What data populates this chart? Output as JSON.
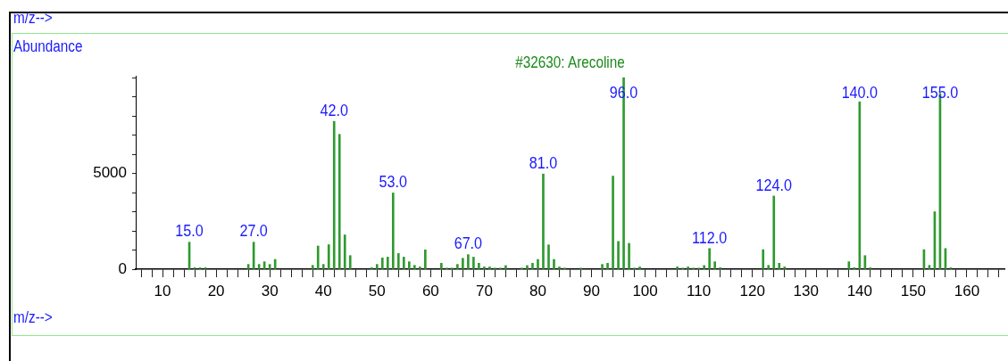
{
  "chart_data": {
    "type": "bar",
    "title": "#32630: Arecoline",
    "xlabel": "m/z-->",
    "ylabel": "Abundance",
    "x": [
      15,
      16,
      17,
      18,
      26,
      27,
      28,
      29,
      30,
      31,
      38,
      39,
      40,
      41,
      42,
      43,
      44,
      45,
      49,
      50,
      51,
      52,
      53,
      54,
      55,
      56,
      57,
      58,
      59,
      62,
      63,
      64,
      65,
      66,
      67,
      68,
      69,
      70,
      71,
      72,
      73,
      74,
      77,
      78,
      79,
      80,
      81,
      82,
      83,
      84,
      85,
      88,
      92,
      93,
      94,
      95,
      96,
      97,
      98,
      99,
      106,
      107,
      108,
      109,
      110,
      111,
      112,
      113,
      114,
      122,
      123,
      124,
      125,
      126,
      138,
      139,
      140,
      141,
      142,
      152,
      153,
      154,
      155,
      156,
      157
    ],
    "values": [
      1410,
      80,
      80,
      80,
      250,
      1410,
      250,
      390,
      250,
      510,
      200,
      1210,
      250,
      1280,
      7720,
      7040,
      1790,
      710,
      80,
      250,
      590,
      630,
      3980,
      820,
      630,
      390,
      200,
      120,
      1010,
      310,
      60,
      60,
      250,
      570,
      760,
      630,
      310,
      120,
      120,
      60,
      60,
      190,
      60,
      190,
      310,
      510,
      4970,
      1270,
      510,
      120,
      60,
      60,
      250,
      310,
      4860,
      1450,
      10000,
      1350,
      60,
      120,
      120,
      60,
      120,
      60,
      60,
      190,
      1080,
      390,
      80,
      1020,
      200,
      3820,
      310,
      120,
      390,
      80,
      8740,
      710,
      80,
      1020,
      200,
      3000,
      9170,
      1080,
      80
    ],
    "color": "#2f9a2f",
    "xlim": [
      5,
      167
    ],
    "xticks": [
      {
        "value": 6,
        "label": null
      },
      {
        "value": 8,
        "label": null
      },
      10,
      {
        "value": 12,
        "label": null
      },
      {
        "value": 14,
        "label": null
      },
      {
        "value": 16,
        "label": null
      },
      {
        "value": 18,
        "label": null
      },
      20,
      {
        "value": 22,
        "label": null
      },
      {
        "value": 24,
        "label": null
      },
      {
        "value": 26,
        "label": null
      },
      {
        "value": 28,
        "label": null
      },
      30,
      {
        "value": 32,
        "label": null
      },
      {
        "value": 34,
        "label": null
      },
      {
        "value": 36,
        "label": null
      },
      {
        "value": 38,
        "label": null
      },
      40,
      {
        "value": 42,
        "label": null
      },
      {
        "value": 44,
        "label": null
      },
      {
        "value": 46,
        "label": null
      },
      {
        "value": 48,
        "label": null
      },
      50,
      {
        "value": 52,
        "label": null
      },
      {
        "value": 54,
        "label": null
      },
      {
        "value": 56,
        "label": null
      },
      {
        "value": 58,
        "label": null
      },
      60,
      {
        "value": 62,
        "label": null
      },
      {
        "value": 64,
        "label": null
      },
      {
        "value": 66,
        "label": null
      },
      {
        "value": 68,
        "label": null
      },
      70,
      {
        "value": 72,
        "label": null
      },
      {
        "value": 74,
        "label": null
      },
      {
        "value": 76,
        "label": null
      },
      {
        "value": 78,
        "label": null
      },
      80,
      {
        "value": 82,
        "label": null
      },
      {
        "value": 84,
        "label": null
      },
      {
        "value": 86,
        "label": null
      },
      {
        "value": 88,
        "label": null
      },
      90,
      {
        "value": 92,
        "label": null
      },
      {
        "value": 94,
        "label": null
      },
      {
        "value": 96,
        "label": null
      },
      {
        "value": 98,
        "label": null
      },
      100,
      {
        "value": 102,
        "label": null
      },
      {
        "value": 104,
        "label": null
      },
      {
        "value": 106,
        "label": null
      },
      {
        "value": 108,
        "label": null
      },
      110,
      {
        "value": 112,
        "label": null
      },
      {
        "value": 114,
        "label": null
      },
      {
        "value": 116,
        "label": null
      },
      {
        "value": 118,
        "label": null
      },
      120,
      {
        "value": 122,
        "label": null
      },
      {
        "value": 124,
        "label": null
      },
      {
        "value": 126,
        "label": null
      },
      {
        "value": 128,
        "label": null
      },
      130,
      {
        "value": 132,
        "label": null
      },
      {
        "value": 134,
        "label": null
      },
      {
        "value": 136,
        "label": null
      },
      {
        "value": 138,
        "label": null
      },
      140,
      {
        "value": 142,
        "label": null
      },
      {
        "value": 144,
        "label": null
      },
      {
        "value": 146,
        "label": null
      },
      {
        "value": 148,
        "label": null
      },
      150,
      {
        "value": 152,
        "label": null
      },
      {
        "value": 154,
        "label": null
      },
      {
        "value": 156,
        "label": null
      },
      {
        "value": 158,
        "label": null
      },
      160,
      {
        "value": 162,
        "label": null
      },
      {
        "value": 164,
        "label": null
      },
      {
        "value": 166,
        "label": null
      }
    ],
    "ylim": [
      0,
      10100
    ],
    "yticks": [
      0,
      {
        "value": 1000,
        "label": null
      },
      {
        "value": 2000,
        "label": null
      },
      {
        "value": 3000,
        "label": null
      },
      {
        "value": 4000,
        "label": null
      },
      5000,
      {
        "value": 6000,
        "label": null
      },
      {
        "value": 7000,
        "label": null
      },
      {
        "value": 8000,
        "label": null
      },
      {
        "value": 9000,
        "label": null
      },
      {
        "value": 10000,
        "label": null
      }
    ],
    "grid": false,
    "legend": false,
    "annotations": [
      "m/z-->",
      {
        "text": "15.0",
        "x": 15,
        "y": 1410
      },
      {
        "text": "27.0",
        "x": 27,
        "y": 1410
      },
      {
        "text": "42.0",
        "x": 42,
        "y": 7720
      },
      {
        "text": "53.0",
        "x": 53,
        "y": 3980
      },
      {
        "text": "67.0",
        "x": 67,
        "y": 760
      },
      {
        "text": "81.0",
        "x": 81,
        "y": 4970
      },
      {
        "text": "96.0",
        "x": 96,
        "y": 10000
      },
      {
        "text": "112.0",
        "x": 112,
        "y": 1080
      },
      {
        "text": "124.0",
        "x": 124,
        "y": 3820
      },
      {
        "text": "140.0",
        "x": 140,
        "y": 8740
      },
      {
        "text": "155.0",
        "x": 155,
        "y": 9170
      }
    ]
  }
}
